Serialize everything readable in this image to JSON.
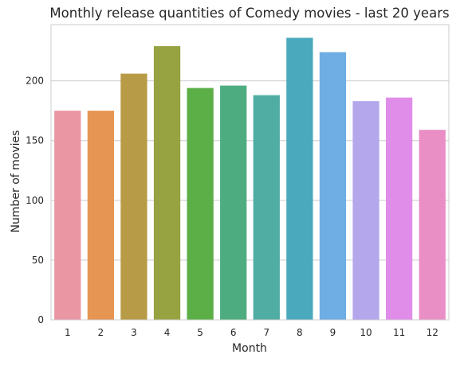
{
  "chart_data": {
    "type": "bar",
    "title": "Monthly release quantities of Comedy movies - last 20 years",
    "xlabel": "Month",
    "ylabel": "Number of movies",
    "categories": [
      "1",
      "2",
      "3",
      "4",
      "5",
      "6",
      "7",
      "8",
      "9",
      "10",
      "11",
      "12"
    ],
    "values": [
      175,
      175,
      206,
      229,
      194,
      196,
      188,
      236,
      224,
      183,
      186,
      159
    ],
    "colors": [
      "#ea96a3",
      "#e69553",
      "#b89b47",
      "#97a240",
      "#5cae47",
      "#4dac80",
      "#50ada4",
      "#4aa9bc",
      "#6eaee4",
      "#b4a7ec",
      "#e08de9",
      "#e98fc6"
    ],
    "ylim": [
      0,
      247
    ],
    "yticks": [
      0,
      50,
      100,
      150,
      200
    ],
    "grid": true,
    "grid_axis": "y"
  }
}
